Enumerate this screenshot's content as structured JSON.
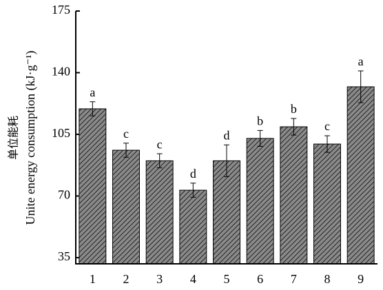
{
  "chart_data": {
    "type": "bar",
    "y_label_zh": "单位能耗",
    "y_label": "Unite energy consumption (kJ·g⁻¹)",
    "categories": [
      "1",
      "2",
      "3",
      "4",
      "5",
      "6",
      "7",
      "8",
      "9"
    ],
    "values": [
      119.5,
      96,
      90,
      73.3,
      90,
      102.7,
      109.3,
      99.5,
      132
    ],
    "errors": [
      4,
      4,
      4,
      4,
      9,
      4.5,
      4.7,
      4.7,
      9
    ],
    "letters": [
      "a",
      "c",
      "c",
      "d",
      "d",
      "b",
      "b",
      "c",
      "a"
    ],
    "color": "#666666",
    "ylim": [
      31.5,
      175
    ],
    "yticks": [
      35,
      70,
      105,
      140,
      175
    ]
  }
}
